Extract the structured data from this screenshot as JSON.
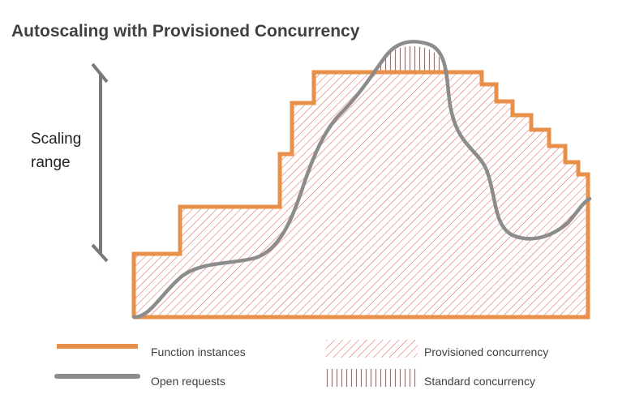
{
  "title": "Autoscaling with Provisioned Concurrency",
  "scaling_range": {
    "line1": "Scaling",
    "line2": "range"
  },
  "legend": {
    "function_instances": "Function instances",
    "open_requests": "Open requests",
    "provisioned_concurrency": "Provisioned concurrency",
    "standard_concurrency": "Standard concurrency"
  },
  "colors": {
    "function_instances": "#e8904a",
    "open_requests": "#8c8c8c",
    "hatch": "#e0584f",
    "title": "#404040"
  }
}
